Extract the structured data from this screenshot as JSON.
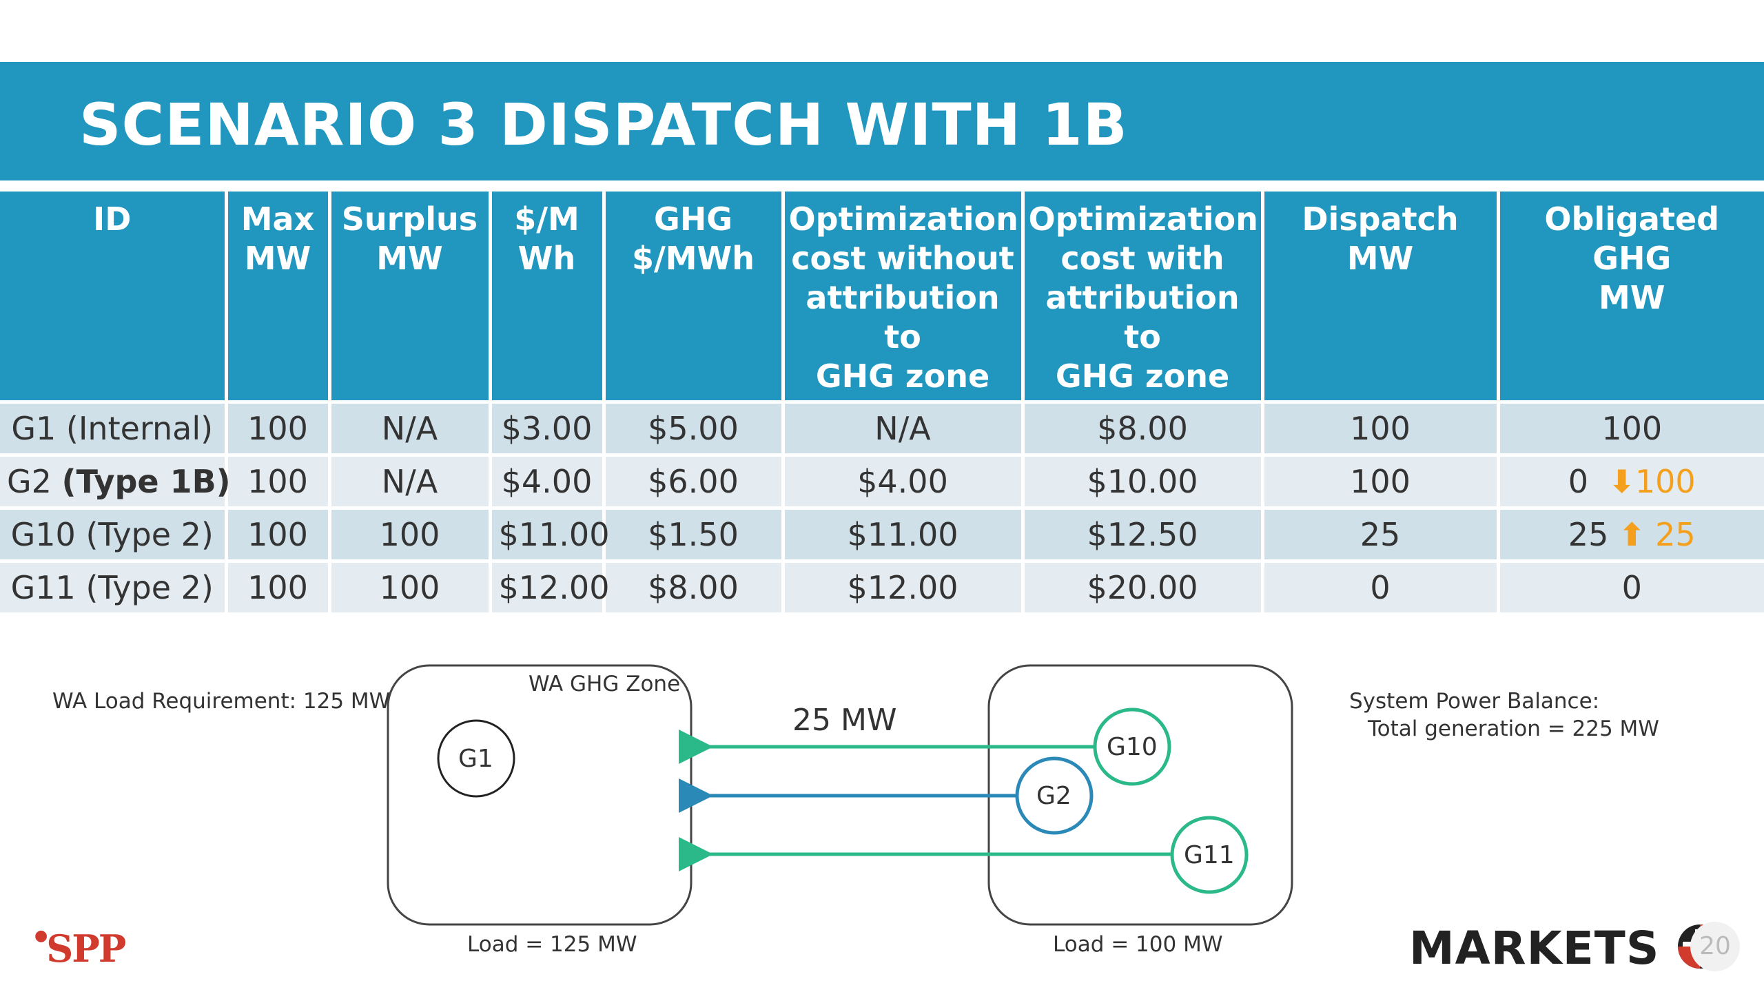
{
  "title": "SCENARIO 3 DISPATCH WITH 1B",
  "table": {
    "headers": {
      "id": "ID",
      "max_mw": [
        "Max",
        "MW"
      ],
      "surplus_mw": [
        "Surplus",
        "MW"
      ],
      "price": [
        "$/M",
        "Wh"
      ],
      "ghg": [
        "GHG",
        "$/MWh"
      ],
      "opt_without": [
        "Optimization",
        "cost without",
        "attribution to",
        "GHG zone"
      ],
      "opt_with": [
        "Optimization",
        "cost with",
        "attribution to",
        "GHG zone"
      ],
      "dispatch": "Dispatch MW",
      "obligated": [
        "Obligated GHG",
        "MW"
      ]
    },
    "rows": [
      {
        "name": "G1",
        "type": "(Internal)",
        "type_bold": "",
        "max": "100",
        "surplus": "N/A",
        "price": "$3.00",
        "ghg": "$5.00",
        "opt_without": "N/A",
        "opt_with": "$8.00",
        "dispatch": "100",
        "obligated": "100",
        "arrow": "",
        "delta": ""
      },
      {
        "name": "G2",
        "type": "",
        "type_bold": "(Type 1B)",
        "max": "100",
        "surplus": "N/A",
        "price": "$4.00",
        "ghg": "$6.00",
        "opt_without": "$4.00",
        "opt_with": "$10.00",
        "dispatch": "100",
        "obligated": "0",
        "arrow": "⬇",
        "delta": "100"
      },
      {
        "name": "G10",
        "type": "(Type 2)",
        "type_bold": "",
        "max": "100",
        "surplus": "100",
        "price": "$11.00",
        "ghg": "$1.50",
        "opt_without": "$11.00",
        "opt_with": "$12.50",
        "dispatch": "25",
        "obligated": "25",
        "arrow": "⬆",
        "delta": "25"
      },
      {
        "name": "G11",
        "type": "(Type 2)",
        "type_bold": "",
        "max": "100",
        "surplus": "100",
        "price": "$12.00",
        "ghg": "$8.00",
        "opt_without": "$12.00",
        "opt_with": "$20.00",
        "dispatch": "0",
        "obligated": "0",
        "arrow": "",
        "delta": ""
      }
    ]
  },
  "diagram": {
    "wa_load_requirement": "WA Load Requirement: 125 MW",
    "zone_label": "WA GHG Zone",
    "flow_label": "25 MW",
    "load_left": "Load = 125 MW",
    "load_right": "Load = 100 MW",
    "balance_line1": "System Power Balance:",
    "balance_line2": "Total generation = 225 MW",
    "nodes": {
      "g1": "G1",
      "g10": "G10",
      "g2": "G2",
      "g11": "G11"
    },
    "colors": {
      "green": "#2bb98a",
      "blue": "#2a89b7",
      "box": "#444444"
    }
  },
  "footer": {
    "spp_logo": "SPP",
    "markets_logo": "MARKETS",
    "page_number": "20"
  },
  "colors": {
    "header_blue": "#2197bf",
    "row_dark": "#cfe0e8",
    "row_light": "#e4ecf1",
    "accent_orange": "#f5a01c"
  }
}
